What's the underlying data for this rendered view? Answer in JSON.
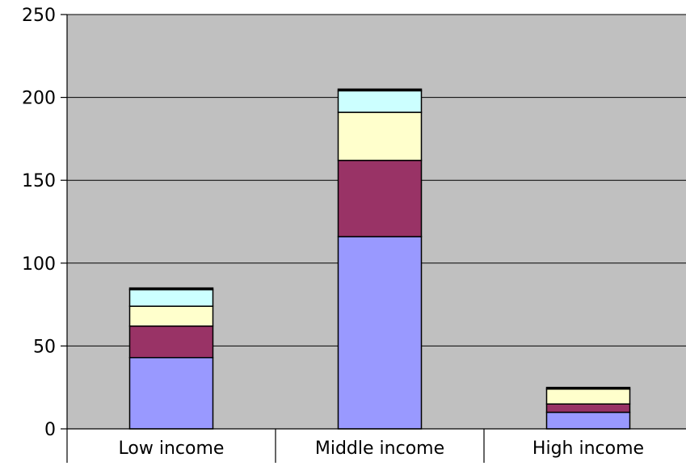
{
  "chart_data": {
    "type": "bar",
    "stacked": true,
    "title": "",
    "xlabel": "",
    "ylabel": "",
    "categories": [
      "Low income",
      "Middle income",
      "High income"
    ],
    "ylim": [
      0,
      250
    ],
    "yticks": [
      0,
      50,
      100,
      150,
      200,
      250
    ],
    "grid": true,
    "legend": "none",
    "plot_background": "#c0c0c0",
    "series": [
      {
        "color": "#9999ff",
        "values": [
          43,
          116,
          10
        ]
      },
      {
        "color": "#993366",
        "values": [
          19,
          46,
          5
        ]
      },
      {
        "color": "#ffffcc",
        "values": [
          12,
          29,
          9
        ]
      },
      {
        "color": "#ccffff",
        "values": [
          10,
          13,
          0
        ]
      },
      {
        "color": "#000000",
        "values": [
          1,
          1,
          1
        ]
      }
    ]
  }
}
